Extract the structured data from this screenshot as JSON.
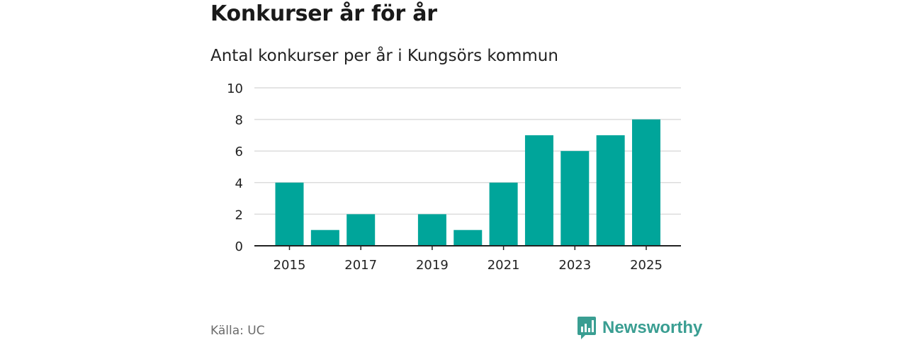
{
  "header": {
    "title": "Konkurser år för år",
    "subtitle": "Antal konkurser per år i Kungsörs kommun"
  },
  "footer": {
    "source": "Källa: UC",
    "brand": "Newsworthy"
  },
  "colors": {
    "bar": "#00a59a",
    "brand": "#3a9e92",
    "grid": "#dcdcdc",
    "axis": "#222222"
  },
  "chart_data": {
    "type": "bar",
    "categories": [
      "2015",
      "2016",
      "2017",
      "2018",
      "2019",
      "2020",
      "2021",
      "2022",
      "2023",
      "2024",
      "2025"
    ],
    "values": [
      4,
      1,
      2,
      0,
      2,
      1,
      4,
      7,
      6,
      7,
      8
    ],
    "x_tick_labels": [
      "2015",
      "2017",
      "2019",
      "2021",
      "2023",
      "2025"
    ],
    "y_ticks": [
      0,
      2,
      4,
      6,
      8,
      10
    ],
    "ylim": [
      0,
      10
    ],
    "grid": true,
    "xlabel": "",
    "ylabel": ""
  }
}
